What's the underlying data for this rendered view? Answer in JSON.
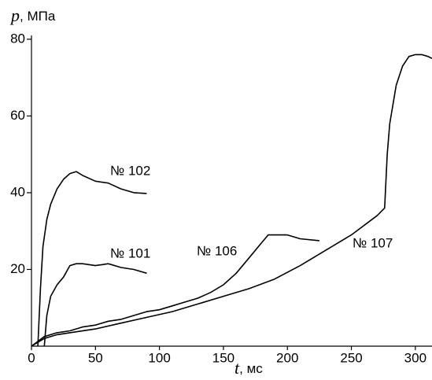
{
  "chart_data": {
    "type": "line",
    "y_label_symbol": "p",
    "y_label_unit": ", МПа",
    "x_label_symbol": "t",
    "x_label_unit": ", мс",
    "xlim": [
      0,
      313
    ],
    "ylim": [
      0,
      81
    ],
    "xticks": [
      0,
      50,
      100,
      150,
      200,
      250,
      300
    ],
    "yticks": [
      20,
      40,
      60,
      80
    ],
    "series": [
      {
        "name": "№ 102",
        "color": "#000000",
        "x": [
          5,
          7,
          9,
          12,
          15,
          20,
          25,
          30,
          35,
          40,
          50,
          60,
          70,
          80,
          90
        ],
        "values": [
          0,
          15,
          26,
          33,
          37,
          41,
          43.5,
          45,
          45.5,
          44.5,
          43,
          42.5,
          41,
          40,
          39.8
        ]
      },
      {
        "name": "№ 101",
        "color": "#000000",
        "x": [
          10,
          12,
          15,
          20,
          25,
          30,
          35,
          40,
          50,
          60,
          70,
          80,
          90
        ],
        "values": [
          0,
          8,
          13,
          16,
          18,
          21,
          21.5,
          21.5,
          21,
          21.5,
          20.5,
          20,
          19
        ]
      },
      {
        "name": "№ 106",
        "color": "#000000",
        "x": [
          0,
          10,
          20,
          30,
          40,
          50,
          60,
          70,
          80,
          90,
          100,
          110,
          120,
          130,
          140,
          150,
          160,
          170,
          180,
          185,
          190,
          200,
          210,
          225
        ],
        "values": [
          0,
          2.5,
          3.5,
          4,
          5,
          5.5,
          6.5,
          7,
          8,
          9,
          9.5,
          10.5,
          11.5,
          12.5,
          14,
          16,
          19,
          23,
          27,
          29,
          29,
          29,
          28,
          27.5
        ]
      },
      {
        "name": "№ 107",
        "color": "#000000",
        "x": [
          0,
          10,
          20,
          30,
          50,
          70,
          90,
          110,
          130,
          150,
          170,
          190,
          210,
          230,
          250,
          270,
          276,
          278,
          280,
          285,
          290,
          295,
          300,
          305,
          310,
          313
        ],
        "values": [
          0,
          2,
          3,
          3.5,
          4.5,
          6,
          7.5,
          9,
          11,
          13,
          15,
          17.5,
          21,
          25,
          29,
          34,
          36,
          50,
          58,
          68,
          73,
          75.5,
          76,
          76,
          75.5,
          75
        ]
      }
    ]
  }
}
